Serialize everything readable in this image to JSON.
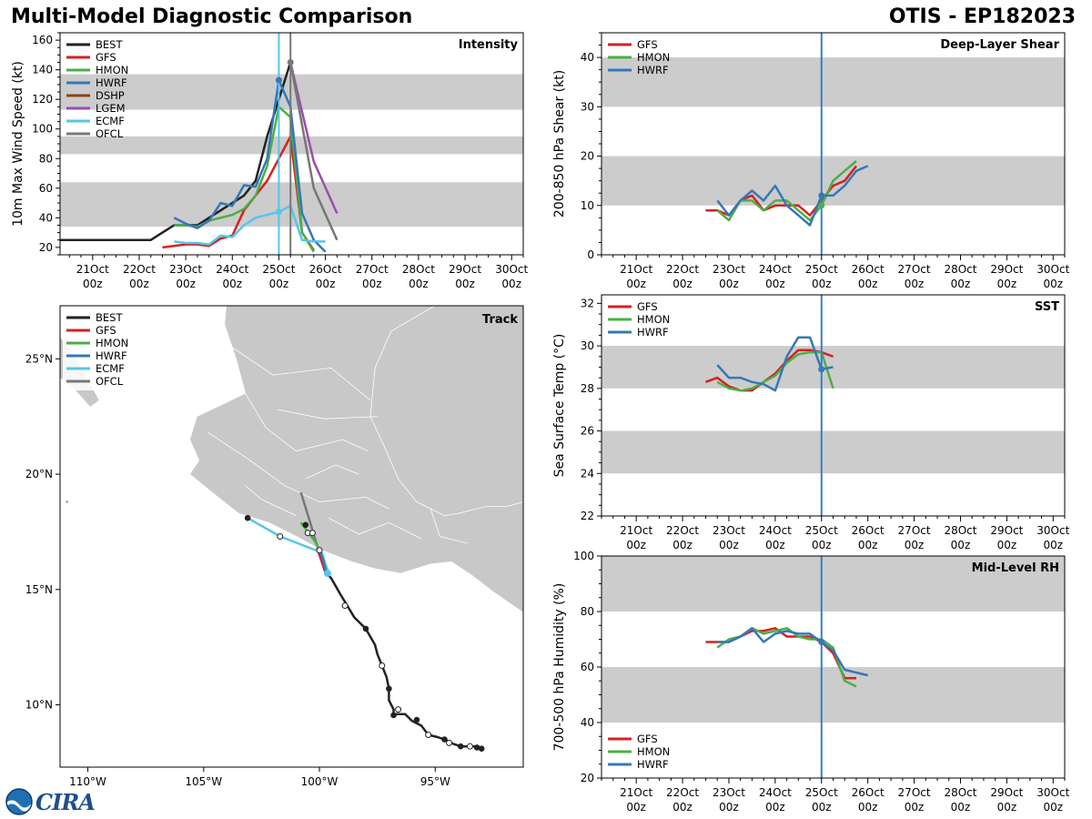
{
  "header": {
    "title": "Multi-Model Diagnostic Comparison",
    "storm": "OTIS - EP182023"
  },
  "logo": {
    "text": "CIRA"
  },
  "colors": {
    "BEST": "#222222",
    "GFS": "#d62020",
    "HMON": "#4caf45",
    "HWRF": "#3478b8",
    "DSHP": "#8b4513",
    "LGEM": "#9b4fa8",
    "ECMF": "#55c6ec",
    "OFCL": "#777777",
    "band": "#cccccc",
    "vline": "#3a7ec4",
    "land": "#c8c8c8"
  },
  "time_ticks": {
    "labels": [
      "21Oct",
      "22Oct",
      "23Oct",
      "24Oct",
      "25Oct",
      "26Oct",
      "27Oct",
      "28Oct",
      "29Oct",
      "30Oct"
    ],
    "sublabel": "00z"
  },
  "chart_data": [
    {
      "type": "line",
      "name": "intensity",
      "tag": "Intensity",
      "ylabel": "10m Max Wind Speed (kt)",
      "xlim": [
        20.3,
        30.25
      ],
      "ylim": [
        15,
        165
      ],
      "yticks": [
        20,
        40,
        60,
        80,
        100,
        120,
        140,
        160
      ],
      "bands": [
        [
          34,
          64
        ],
        [
          83,
          95
        ],
        [
          113,
          137
        ]
      ],
      "vlines": [
        {
          "x": 25.0,
          "color": "#55c6ec"
        },
        {
          "x": 25.25,
          "color": "#777777"
        }
      ],
      "legend": [
        "BEST",
        "GFS",
        "HMON",
        "HWRF",
        "DSHP",
        "LGEM",
        "ECMF",
        "OFCL"
      ],
      "series": [
        {
          "name": "BEST",
          "x": [
            20.0,
            20.25,
            20.5,
            20.75,
            21.0,
            21.25,
            21.5,
            21.75,
            22.0,
            22.25,
            22.5,
            22.75,
            23.0,
            23.25,
            23.5,
            23.75,
            24.0,
            24.25,
            24.5,
            24.75,
            25.0,
            25.25
          ],
          "y": [
            25,
            25,
            25,
            25,
            25,
            25,
            25,
            25,
            25,
            25,
            30,
            35,
            35,
            35,
            40,
            45,
            50,
            55,
            65,
            95,
            120,
            145
          ]
        },
        {
          "name": "GFS",
          "x": [
            22.5,
            22.75,
            23.0,
            23.25,
            23.5,
            23.75,
            24.0,
            24.25,
            24.5,
            24.75,
            25.0,
            25.25,
            25.5,
            25.75
          ],
          "y": [
            20,
            21,
            22,
            22,
            21,
            26,
            28,
            45,
            55,
            65,
            80,
            95,
            30,
            18
          ]
        },
        {
          "name": "HMON",
          "x": [
            22.75,
            23.0,
            23.25,
            23.5,
            23.75,
            24.0,
            24.25,
            24.5,
            24.75,
            25.0,
            25.25,
            25.5,
            25.75
          ],
          "y": [
            35,
            35,
            34,
            38,
            40,
            42,
            46,
            55,
            75,
            115,
            108,
            30,
            17
          ]
        },
        {
          "name": "HWRF",
          "x": [
            22.75,
            23.0,
            23.25,
            23.5,
            23.75,
            24.0,
            24.25,
            24.5,
            24.75,
            25.0,
            25.25,
            25.5,
            25.75,
            26.0
          ],
          "y": [
            40,
            36,
            33,
            38,
            50,
            48,
            62,
            61,
            80,
            133,
            115,
            43,
            25,
            17
          ]
        },
        {
          "name": "ECMF",
          "x": [
            22.75,
            23.0,
            23.25,
            23.5,
            23.75,
            24.0,
            24.25,
            24.5,
            24.75,
            25.0,
            25.25,
            25.5,
            25.75,
            26.0
          ],
          "y": [
            24,
            23,
            23,
            22,
            28,
            27,
            35,
            40,
            42,
            44,
            48,
            25,
            24,
            24
          ]
        },
        {
          "name": "LGEM",
          "x": [
            25.25,
            25.75,
            26.25
          ],
          "y": [
            145,
            78,
            43
          ]
        },
        {
          "name": "OFCL",
          "x": [
            25.25,
            25.75,
            26.25
          ],
          "y": [
            145,
            60,
            25
          ]
        }
      ],
      "markers": [
        {
          "series": "ECMF",
          "x": 25.0,
          "y": 44
        },
        {
          "series": "HWRF",
          "x": 25.0,
          "y": 133
        },
        {
          "series": "OFCL",
          "x": 25.25,
          "y": 145
        }
      ]
    },
    {
      "type": "line",
      "name": "shear",
      "tag": "Deep-Layer Shear",
      "ylabel": "200-850 hPa Shear (kt)",
      "xlim": [
        20.25,
        30.25
      ],
      "ylim": [
        0,
        45
      ],
      "yticks": [
        0,
        10,
        20,
        30,
        40
      ],
      "bands": [
        [
          10,
          20
        ],
        [
          30,
          40
        ]
      ],
      "vlines": [
        {
          "x": 25.0,
          "color": "#3a7ec4"
        }
      ],
      "legend": [
        "GFS",
        "HMON",
        "HWRF"
      ],
      "series": [
        {
          "name": "GFS",
          "x": [
            22.5,
            22.75,
            23.0,
            23.25,
            23.5,
            23.75,
            24.0,
            24.25,
            24.5,
            24.75,
            25.0,
            25.25,
            25.5,
            25.75
          ],
          "y": [
            9,
            9,
            8,
            11,
            12,
            9,
            10,
            10,
            10,
            8,
            11,
            14,
            15,
            18
          ]
        },
        {
          "name": "HMON",
          "x": [
            22.75,
            23.0,
            23.25,
            23.5,
            23.75,
            24.0,
            24.25,
            24.5,
            24.75,
            25.0,
            25.25,
            25.5,
            25.75
          ],
          "y": [
            9,
            7,
            11,
            11,
            9,
            11,
            11,
            9,
            7,
            10,
            15,
            17,
            19
          ]
        },
        {
          "name": "HWRF",
          "x": [
            22.75,
            23.0,
            23.25,
            23.5,
            23.75,
            24.0,
            24.25,
            24.5,
            24.75,
            25.0,
            25.25,
            25.5,
            25.75,
            26.0
          ],
          "y": [
            11,
            8,
            11,
            13,
            11,
            14,
            10,
            8,
            6,
            12,
            12,
            14,
            17,
            18
          ]
        }
      ],
      "markers": [
        {
          "series": "HWRF",
          "x": 25.0,
          "y": 12
        },
        {
          "series": "HMON",
          "x": 25.0,
          "y": 10
        }
      ]
    },
    {
      "type": "line",
      "name": "sst",
      "tag": "SST",
      "ylabel": "Sea Surface Temp (°C)",
      "xlim": [
        20.25,
        30.25
      ],
      "ylim": [
        22,
        32.4
      ],
      "yticks": [
        22,
        24,
        26,
        28,
        30,
        32
      ],
      "bands": [
        [
          24,
          26
        ],
        [
          28,
          30
        ]
      ],
      "vlines": [
        {
          "x": 25.0,
          "color": "#3a7ec4"
        }
      ],
      "legend": [
        "GFS",
        "HMON",
        "HWRF"
      ],
      "series": [
        {
          "name": "GFS",
          "x": [
            22.5,
            22.75,
            23.0,
            23.25,
            23.5,
            23.75,
            24.0,
            24.25,
            24.5,
            24.75,
            25.0,
            25.25
          ],
          "y": [
            28.3,
            28.5,
            28.1,
            27.9,
            27.9,
            28.3,
            28.7,
            29.3,
            29.8,
            29.8,
            29.7,
            29.5
          ]
        },
        {
          "name": "HMON",
          "x": [
            22.75,
            23.0,
            23.25,
            23.5,
            23.75,
            24.0,
            24.25,
            24.5,
            24.75,
            25.0,
            25.25
          ],
          "y": [
            28.3,
            28.0,
            27.9,
            28.0,
            28.3,
            28.6,
            29.2,
            29.6,
            29.7,
            29.7,
            28.0
          ]
        },
        {
          "name": "HWRF",
          "x": [
            22.75,
            23.0,
            23.25,
            23.5,
            23.75,
            24.0,
            24.25,
            24.5,
            24.75,
            25.0,
            25.25
          ],
          "y": [
            29.1,
            28.5,
            28.5,
            28.3,
            28.2,
            27.9,
            29.5,
            30.4,
            30.4,
            28.9,
            29.0
          ]
        }
      ],
      "markers": [
        {
          "series": "HWRF",
          "x": 25.0,
          "y": 28.9
        }
      ]
    },
    {
      "type": "line",
      "name": "rh",
      "tag": "Mid-Level RH",
      "ylabel": "700-500 hPa Humidity (%)",
      "xlim": [
        20.25,
        30.25
      ],
      "ylim": [
        20,
        100
      ],
      "yticks": [
        20,
        40,
        60,
        80,
        100
      ],
      "bands": [
        [
          40,
          60
        ],
        [
          80,
          100
        ]
      ],
      "vlines": [
        {
          "x": 25.0,
          "color": "#3a7ec4"
        }
      ],
      "legend": [
        "GFS",
        "HMON",
        "HWRF"
      ],
      "series": [
        {
          "name": "GFS",
          "x": [
            22.5,
            22.75,
            23.0,
            23.25,
            23.5,
            23.75,
            24.0,
            24.25,
            24.5,
            24.75,
            25.0,
            25.25,
            25.5,
            25.75
          ],
          "y": [
            69,
            69,
            69,
            71,
            73,
            73,
            74,
            71,
            71,
            71,
            69,
            65,
            56,
            56
          ]
        },
        {
          "name": "HMON",
          "x": [
            22.75,
            23.0,
            23.25,
            23.5,
            23.75,
            24.0,
            24.25,
            24.5,
            24.75,
            25.0,
            25.25,
            25.5,
            25.75
          ],
          "y": [
            67,
            70,
            71,
            74,
            72,
            73,
            74,
            71,
            70,
            70,
            67,
            55,
            53
          ]
        },
        {
          "name": "HWRF",
          "x": [
            22.75,
            23.0,
            23.25,
            23.5,
            23.75,
            24.0,
            24.25,
            24.5,
            24.75,
            25.0,
            25.25,
            25.5,
            25.75,
            26.0
          ],
          "y": [
            69,
            69,
            71,
            74,
            69,
            72,
            73,
            72,
            72,
            69,
            66,
            59,
            58,
            57
          ]
        }
      ],
      "markers": [
        {
          "series": "HWRF",
          "x": 25.0,
          "y": 69
        }
      ]
    },
    {
      "type": "map",
      "name": "track",
      "tag": "Track",
      "lon_range": [
        -111.2,
        -91.2
      ],
      "lat_range": [
        7.3,
        27.3
      ],
      "lon_ticks": [
        -110,
        -105,
        -100,
        -95
      ],
      "lat_ticks": [
        10,
        15,
        20,
        25
      ],
      "lon_labels": [
        "110°W",
        "105°W",
        "100°W",
        "95°W"
      ],
      "lat_labels": [
        "10°N",
        "15°N",
        "20°N",
        "25°N"
      ],
      "legend": [
        "BEST",
        "GFS",
        "HMON",
        "HWRF",
        "ECMF",
        "OFCL"
      ],
      "tracks": [
        {
          "name": "BEST",
          "lon": [
            -92.9,
            -93.1,
            -93.3,
            -93.5,
            -93.9,
            -94.2,
            -94.6,
            -94.9,
            -95.3,
            -95.6,
            -96.0,
            -96.3,
            -96.7,
            -96.8,
            -96.8,
            -97.0,
            -97.0,
            -97.1,
            -97.3,
            -97.5,
            -97.6,
            -98.0,
            -98.5,
            -98.8,
            -99.1,
            -99.5,
            -99.7,
            -99.7
          ],
          "lat": [
            8.1,
            8.1,
            8.2,
            8.2,
            8.2,
            8.3,
            8.5,
            8.6,
            8.7,
            9.1,
            9.3,
            9.6,
            9.6,
            9.5,
            9.8,
            10.2,
            10.7,
            11.2,
            11.7,
            12.2,
            12.6,
            13.3,
            13.8,
            14.3,
            14.8,
            15.5,
            15.7,
            15.7
          ]
        },
        {
          "name": "GFS",
          "lon": [
            -99.7,
            -99.9,
            -100.1
          ],
          "lat": [
            15.6,
            16.2,
            16.8
          ]
        },
        {
          "name": "HMON",
          "lon": [
            -99.7,
            -99.9,
            -100.2,
            -100.5,
            -100.8
          ],
          "lat": [
            15.7,
            16.5,
            17.1,
            17.5,
            17.9
          ]
        },
        {
          "name": "HWRF",
          "lon": [
            -99.7,
            -99.85,
            -100.0
          ],
          "lat": [
            15.7,
            16.3,
            16.7
          ]
        },
        {
          "name": "ECMF",
          "lon": [
            -99.6,
            -99.9,
            -101.7,
            -103.1
          ],
          "lat": [
            15.7,
            16.6,
            17.3,
            18.1
          ]
        },
        {
          "name": "OFCL",
          "lon": [
            -99.7,
            -99.9,
            -100.1,
            -100.4,
            -100.8
          ],
          "lat": [
            15.7,
            16.4,
            16.9,
            17.9,
            19.2
          ]
        }
      ],
      "best_points_filled": [
        [
          -93.0,
          8.1
        ],
        [
          -93.2,
          8.15
        ],
        [
          -93.9,
          8.2
        ],
        [
          -94.6,
          8.5
        ],
        [
          -95.8,
          9.35
        ],
        [
          -96.8,
          9.55
        ],
        [
          -97.0,
          10.7
        ],
        [
          -98.0,
          13.3
        ],
        [
          -100.6,
          17.8
        ],
        [
          -103.1,
          18.1
        ]
      ],
      "best_points_open": [
        [
          -93.5,
          8.2
        ],
        [
          -94.4,
          8.35
        ],
        [
          -95.3,
          8.7
        ],
        [
          -96.6,
          9.8
        ],
        [
          -97.3,
          11.7
        ],
        [
          -98.9,
          14.3
        ],
        [
          -100.5,
          17.45
        ],
        [
          -100.3,
          17.45
        ],
        [
          -101.7,
          17.3
        ],
        [
          -100.0,
          16.7
        ]
      ]
    }
  ]
}
